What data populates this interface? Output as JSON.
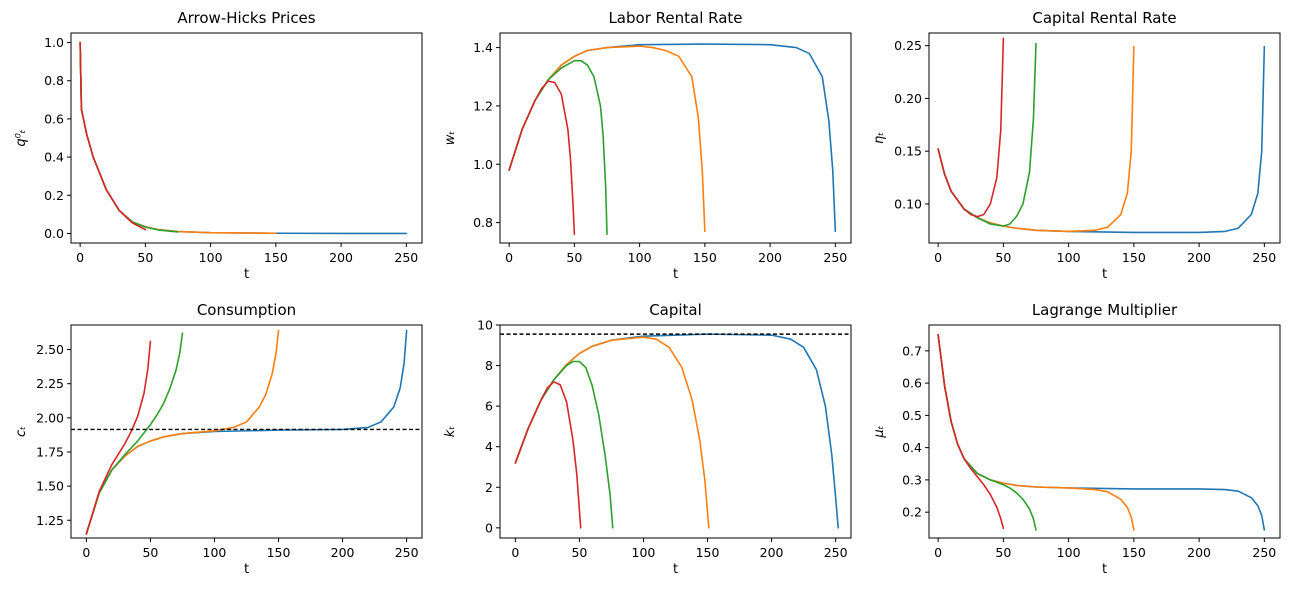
{
  "colors": {
    "T250": "#1f77b4",
    "T150": "#ff7f0e",
    "T75": "#2ca02c",
    "T50": "#d62728",
    "ref": "#000000"
  },
  "chart_data": [
    {
      "type": "line",
      "title": "Arrow-Hicks Prices",
      "xlabel": "t",
      "ylabel": "q_t^0",
      "ylabel_display": "q⁰ₜ",
      "xlim": [
        -7,
        262
      ],
      "ylim": [
        -0.05,
        1.05
      ],
      "xticks": [
        0,
        50,
        100,
        150,
        200,
        250
      ],
      "yticks": [
        0.0,
        0.2,
        0.4,
        0.6,
        0.8,
        1.0
      ],
      "yticklabels": [
        "0.0",
        "0.2",
        "0.4",
        "0.6",
        "0.8",
        "1.0"
      ],
      "grid": false,
      "series": [
        {
          "color_key": "T250",
          "x": [
            0,
            1,
            5,
            10,
            20,
            30,
            40,
            50,
            60,
            75,
            100,
            150,
            200,
            250
          ],
          "y": [
            1.0,
            0.65,
            0.52,
            0.4,
            0.23,
            0.12,
            0.06,
            0.035,
            0.02,
            0.01,
            0.004,
            0.001,
            0.0,
            0.0
          ]
        },
        {
          "color_key": "T150",
          "x": [
            0,
            1,
            5,
            10,
            20,
            30,
            40,
            50,
            60,
            75,
            100,
            150
          ],
          "y": [
            1.0,
            0.65,
            0.52,
            0.4,
            0.23,
            0.12,
            0.06,
            0.035,
            0.02,
            0.01,
            0.004,
            0.001
          ]
        },
        {
          "color_key": "T75",
          "x": [
            0,
            1,
            5,
            10,
            20,
            30,
            40,
            50,
            60,
            75
          ],
          "y": [
            1.0,
            0.65,
            0.52,
            0.4,
            0.23,
            0.12,
            0.06,
            0.033,
            0.018,
            0.008
          ]
        },
        {
          "color_key": "T50",
          "x": [
            0,
            1,
            5,
            10,
            20,
            30,
            40,
            50
          ],
          "y": [
            1.0,
            0.65,
            0.52,
            0.4,
            0.23,
            0.12,
            0.055,
            0.02
          ]
        }
      ]
    },
    {
      "type": "line",
      "title": "Labor Rental Rate",
      "xlabel": "t",
      "ylabel": "w_t",
      "ylabel_display": "wₜ",
      "xlim": [
        -7,
        262
      ],
      "ylim": [
        0.73,
        1.45
      ],
      "xticks": [
        0,
        50,
        100,
        150,
        200,
        250
      ],
      "yticks": [
        0.8,
        1.0,
        1.2,
        1.4
      ],
      "yticklabels": [
        "0.8",
        "1.0",
        "1.2",
        "1.4"
      ],
      "grid": false,
      "series": [
        {
          "color_key": "T250",
          "x": [
            0,
            10,
            20,
            30,
            40,
            50,
            60,
            75,
            100,
            150,
            200,
            220,
            230,
            240,
            245,
            248,
            250
          ],
          "y": [
            0.98,
            1.12,
            1.22,
            1.29,
            1.34,
            1.37,
            1.39,
            1.4,
            1.41,
            1.412,
            1.41,
            1.4,
            1.38,
            1.3,
            1.15,
            0.98,
            0.77
          ]
        },
        {
          "color_key": "T150",
          "x": [
            0,
            10,
            20,
            30,
            40,
            50,
            60,
            75,
            100,
            110,
            120,
            130,
            140,
            145,
            148,
            150
          ],
          "y": [
            0.98,
            1.12,
            1.22,
            1.29,
            1.34,
            1.37,
            1.39,
            1.4,
            1.405,
            1.4,
            1.39,
            1.37,
            1.3,
            1.16,
            0.98,
            0.77
          ]
        },
        {
          "color_key": "T75",
          "x": [
            0,
            10,
            20,
            30,
            40,
            50,
            55,
            60,
            65,
            70,
            72,
            74,
            75
          ],
          "y": [
            0.98,
            1.12,
            1.22,
            1.29,
            1.33,
            1.355,
            1.355,
            1.34,
            1.3,
            1.2,
            1.1,
            0.92,
            0.76
          ]
        },
        {
          "color_key": "T50",
          "x": [
            0,
            10,
            20,
            25,
            30,
            35,
            40,
            45,
            47,
            49,
            50
          ],
          "y": [
            0.98,
            1.12,
            1.22,
            1.26,
            1.285,
            1.28,
            1.24,
            1.12,
            1.02,
            0.86,
            0.76
          ]
        }
      ]
    },
    {
      "type": "line",
      "title": "Capital Rental Rate",
      "xlabel": "t",
      "ylabel": "η_t",
      "ylabel_display": "ηₜ",
      "xlim": [
        -7,
        262
      ],
      "ylim": [
        0.063,
        0.262
      ],
      "xticks": [
        0,
        50,
        100,
        150,
        200,
        250
      ],
      "yticks": [
        0.1,
        0.15,
        0.2,
        0.25
      ],
      "yticklabels": [
        "0.10",
        "0.15",
        "0.20",
        "0.25"
      ],
      "grid": false,
      "series": [
        {
          "color_key": "T250",
          "x": [
            0,
            5,
            10,
            20,
            30,
            40,
            50,
            60,
            75,
            100,
            150,
            200,
            220,
            230,
            240,
            245,
            248,
            250
          ],
          "y": [
            0.152,
            0.128,
            0.112,
            0.095,
            0.087,
            0.082,
            0.079,
            0.077,
            0.075,
            0.074,
            0.073,
            0.073,
            0.074,
            0.077,
            0.09,
            0.11,
            0.15,
            0.249
          ]
        },
        {
          "color_key": "T150",
          "x": [
            0,
            5,
            10,
            20,
            30,
            40,
            50,
            60,
            75,
            100,
            120,
            130,
            140,
            145,
            148,
            150
          ],
          "y": [
            0.152,
            0.128,
            0.112,
            0.095,
            0.087,
            0.082,
            0.079,
            0.077,
            0.075,
            0.074,
            0.075,
            0.078,
            0.09,
            0.11,
            0.15,
            0.249
          ]
        },
        {
          "color_key": "T75",
          "x": [
            0,
            5,
            10,
            20,
            30,
            40,
            50,
            55,
            60,
            65,
            70,
            73,
            75
          ],
          "y": [
            0.152,
            0.128,
            0.112,
            0.095,
            0.087,
            0.081,
            0.079,
            0.081,
            0.088,
            0.1,
            0.13,
            0.18,
            0.252
          ]
        },
        {
          "color_key": "T50",
          "x": [
            0,
            5,
            10,
            20,
            25,
            30,
            35,
            40,
            45,
            48,
            50
          ],
          "y": [
            0.152,
            0.128,
            0.112,
            0.095,
            0.09,
            0.088,
            0.09,
            0.1,
            0.125,
            0.17,
            0.257
          ]
        }
      ]
    },
    {
      "type": "line",
      "title": "Consumption",
      "xlabel": "t",
      "ylabel": "c_t",
      "ylabel_display": "cₜ",
      "xlim": [
        -12,
        262
      ],
      "ylim": [
        1.12,
        2.68
      ],
      "xticks": [
        0,
        50,
        100,
        150,
        200,
        250
      ],
      "yticks": [
        1.25,
        1.5,
        1.75,
        2.0,
        2.25,
        2.5
      ],
      "yticklabels": [
        "1.25",
        "1.50",
        "1.75",
        "2.00",
        "2.25",
        "2.50"
      ],
      "grid": false,
      "hline": {
        "y": 1.915,
        "style": "dashed",
        "color_key": "ref"
      },
      "series": [
        {
          "color_key": "T250",
          "x": [
            0,
            10,
            20,
            30,
            40,
            50,
            60,
            75,
            100,
            150,
            200,
            220,
            230,
            240,
            245,
            248,
            250
          ],
          "y": [
            1.15,
            1.45,
            1.62,
            1.72,
            1.79,
            1.83,
            1.86,
            1.885,
            1.9,
            1.91,
            1.915,
            1.93,
            1.97,
            2.08,
            2.22,
            2.4,
            2.64
          ]
        },
        {
          "color_key": "T150",
          "x": [
            0,
            10,
            20,
            30,
            40,
            50,
            60,
            75,
            100,
            115,
            125,
            135,
            140,
            145,
            148,
            150
          ],
          "y": [
            1.15,
            1.45,
            1.62,
            1.72,
            1.79,
            1.83,
            1.86,
            1.885,
            1.905,
            1.93,
            1.97,
            2.08,
            2.17,
            2.32,
            2.47,
            2.64
          ]
        },
        {
          "color_key": "T75",
          "x": [
            0,
            10,
            20,
            30,
            40,
            50,
            55,
            60,
            65,
            70,
            73,
            75
          ],
          "y": [
            1.15,
            1.45,
            1.62,
            1.73,
            1.83,
            1.95,
            2.02,
            2.1,
            2.21,
            2.35,
            2.48,
            2.62
          ]
        },
        {
          "color_key": "T50",
          "x": [
            0,
            10,
            20,
            30,
            35,
            40,
            45,
            48,
            50
          ],
          "y": [
            1.15,
            1.46,
            1.66,
            1.81,
            1.9,
            2.01,
            2.18,
            2.36,
            2.56
          ]
        }
      ]
    },
    {
      "type": "line",
      "title": "Capital",
      "xlabel": "t",
      "ylabel": "k_t",
      "ylabel_display": "kₜ",
      "xlim": [
        -12,
        262
      ],
      "ylim": [
        -0.5,
        10.0
      ],
      "xticks": [
        0,
        50,
        100,
        150,
        200,
        250
      ],
      "yticks": [
        0,
        2,
        4,
        6,
        8,
        10
      ],
      "yticklabels": [
        "0",
        "2",
        "4",
        "6",
        "8",
        "10"
      ],
      "grid": false,
      "hline": {
        "y": 9.55,
        "style": "dashed",
        "color_key": "ref"
      },
      "series": [
        {
          "color_key": "T250",
          "x": [
            0,
            10,
            20,
            30,
            40,
            50,
            60,
            75,
            100,
            150,
            200,
            215,
            225,
            235,
            242,
            247,
            250,
            252
          ],
          "y": [
            3.2,
            4.9,
            6.3,
            7.3,
            8.05,
            8.6,
            8.95,
            9.25,
            9.45,
            9.55,
            9.5,
            9.3,
            8.9,
            7.8,
            6.0,
            3.6,
            1.5,
            0.0
          ]
        },
        {
          "color_key": "T150",
          "x": [
            0,
            10,
            20,
            30,
            40,
            50,
            60,
            75,
            100,
            110,
            120,
            130,
            138,
            144,
            148,
            151
          ],
          "y": [
            3.2,
            4.9,
            6.3,
            7.3,
            8.05,
            8.6,
            8.95,
            9.25,
            9.4,
            9.3,
            8.9,
            7.9,
            6.3,
            4.3,
            2.3,
            0.0
          ]
        },
        {
          "color_key": "T75",
          "x": [
            0,
            10,
            20,
            30,
            40,
            45,
            50,
            55,
            60,
            65,
            70,
            74,
            76
          ],
          "y": [
            3.2,
            4.9,
            6.3,
            7.3,
            8.0,
            8.2,
            8.2,
            7.9,
            7.0,
            5.6,
            3.6,
            1.6,
            0.0
          ]
        },
        {
          "color_key": "T50",
          "x": [
            0,
            10,
            20,
            25,
            30,
            35,
            40,
            45,
            48,
            51
          ],
          "y": [
            3.2,
            4.9,
            6.3,
            6.9,
            7.2,
            7.05,
            6.2,
            4.3,
            2.6,
            0.0
          ]
        }
      ]
    },
    {
      "type": "line",
      "title": "Lagrange Multiplier",
      "xlabel": "t",
      "ylabel": "μ_t",
      "ylabel_display": "μₜ",
      "xlim": [
        -7,
        262
      ],
      "ylim": [
        0.12,
        0.78
      ],
      "xticks": [
        0,
        50,
        100,
        150,
        200,
        250
      ],
      "yticks": [
        0.2,
        0.3,
        0.4,
        0.5,
        0.6,
        0.7
      ],
      "yticklabels": [
        "0.2",
        "0.3",
        "0.4",
        "0.5",
        "0.6",
        "0.7"
      ],
      "grid": false,
      "series": [
        {
          "color_key": "T250",
          "x": [
            0,
            5,
            10,
            15,
            20,
            30,
            40,
            50,
            60,
            75,
            100,
            150,
            200,
            220,
            230,
            240,
            245,
            248,
            250
          ],
          "y": [
            0.75,
            0.59,
            0.48,
            0.41,
            0.365,
            0.32,
            0.3,
            0.29,
            0.283,
            0.278,
            0.275,
            0.272,
            0.272,
            0.27,
            0.265,
            0.245,
            0.22,
            0.19,
            0.145
          ]
        },
        {
          "color_key": "T150",
          "x": [
            0,
            5,
            10,
            15,
            20,
            30,
            40,
            50,
            60,
            75,
            100,
            120,
            130,
            140,
            145,
            148,
            150
          ],
          "y": [
            0.75,
            0.59,
            0.48,
            0.41,
            0.365,
            0.32,
            0.3,
            0.29,
            0.283,
            0.278,
            0.275,
            0.27,
            0.263,
            0.24,
            0.215,
            0.185,
            0.145
          ]
        },
        {
          "color_key": "T75",
          "x": [
            0,
            5,
            10,
            15,
            20,
            30,
            40,
            50,
            55,
            60,
            65,
            70,
            73,
            75
          ],
          "y": [
            0.75,
            0.59,
            0.48,
            0.41,
            0.365,
            0.32,
            0.3,
            0.285,
            0.275,
            0.26,
            0.24,
            0.21,
            0.18,
            0.145
          ]
        },
        {
          "color_key": "T50",
          "x": [
            0,
            5,
            10,
            15,
            20,
            25,
            30,
            35,
            40,
            45,
            48,
            50
          ],
          "y": [
            0.75,
            0.59,
            0.48,
            0.41,
            0.365,
            0.335,
            0.31,
            0.285,
            0.255,
            0.215,
            0.18,
            0.15
          ]
        }
      ]
    }
  ]
}
